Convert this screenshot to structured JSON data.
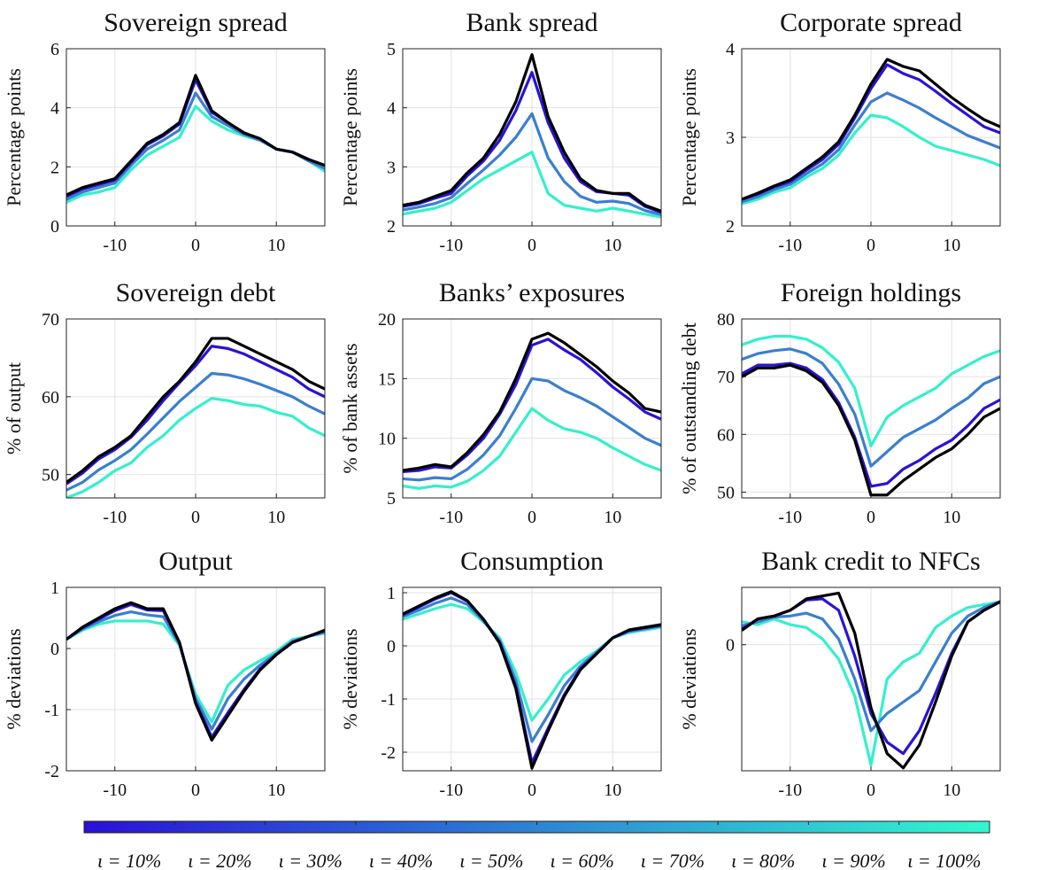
{
  "chart_data": [
    {
      "type": "line",
      "title": "Sovereign spread",
      "ylabel": "Percentage points",
      "grid": true,
      "x": [
        -16,
        -14,
        -12,
        -10,
        -8,
        -6,
        -4,
        -2,
        0,
        2,
        4,
        6,
        8,
        10,
        12,
        14,
        16
      ],
      "xlim": [
        -16,
        16
      ],
      "xticks": [
        -10,
        0,
        10
      ],
      "ylim": [
        0,
        6
      ],
      "yticks": [
        0,
        2,
        4,
        6
      ],
      "series": [
        {
          "color": "#33f0cc",
          "values": [
            0.8,
            1.05,
            1.15,
            1.3,
            1.9,
            2.4,
            2.7,
            3.0,
            4.05,
            3.55,
            3.25,
            3.05,
            2.9,
            2.6,
            2.5,
            2.2,
            1.85
          ]
        },
        {
          "color": "#3a7fd0",
          "values": [
            0.9,
            1.15,
            1.3,
            1.45,
            2.05,
            2.6,
            2.9,
            3.25,
            4.5,
            3.7,
            3.4,
            3.1,
            2.9,
            2.6,
            2.5,
            2.2,
            1.95
          ]
        },
        {
          "color": "#2a12d6",
          "values": [
            1.0,
            1.25,
            1.4,
            1.55,
            2.15,
            2.75,
            3.05,
            3.45,
            4.95,
            3.85,
            3.5,
            3.15,
            2.95,
            2.6,
            2.5,
            2.25,
            2.05
          ]
        },
        {
          "color": "#000000",
          "values": [
            1.05,
            1.3,
            1.45,
            1.6,
            2.2,
            2.8,
            3.1,
            3.5,
            5.1,
            3.9,
            3.5,
            3.15,
            2.95,
            2.6,
            2.5,
            2.25,
            2.05
          ]
        }
      ]
    },
    {
      "type": "line",
      "title": "Bank spread",
      "ylabel": "Percentage points",
      "grid": true,
      "x": [
        -16,
        -14,
        -12,
        -10,
        -8,
        -6,
        -4,
        -2,
        0,
        2,
        4,
        6,
        8,
        10,
        12,
        14,
        16
      ],
      "xlim": [
        -16,
        16
      ],
      "xticks": [
        -10,
        0,
        10
      ],
      "ylim": [
        2,
        5
      ],
      "yticks": [
        2,
        3,
        4,
        5
      ],
      "series": [
        {
          "color": "#33f0cc",
          "values": [
            2.2,
            2.25,
            2.3,
            2.4,
            2.6,
            2.8,
            2.95,
            3.1,
            3.25,
            2.55,
            2.35,
            2.3,
            2.25,
            2.3,
            2.25,
            2.2,
            2.15
          ]
        },
        {
          "color": "#3a7fd0",
          "values": [
            2.27,
            2.32,
            2.38,
            2.48,
            2.72,
            2.95,
            3.2,
            3.5,
            3.9,
            3.15,
            2.75,
            2.5,
            2.4,
            2.42,
            2.38,
            2.26,
            2.19
          ]
        },
        {
          "color": "#2a12d6",
          "values": [
            2.33,
            2.38,
            2.47,
            2.55,
            2.85,
            3.1,
            3.45,
            3.95,
            4.6,
            3.75,
            3.15,
            2.75,
            2.58,
            2.55,
            2.52,
            2.33,
            2.23
          ]
        },
        {
          "color": "#000000",
          "values": [
            2.35,
            2.4,
            2.5,
            2.6,
            2.9,
            3.15,
            3.55,
            4.1,
            4.9,
            3.85,
            3.25,
            2.8,
            2.6,
            2.55,
            2.55,
            2.35,
            2.25
          ]
        }
      ]
    },
    {
      "type": "line",
      "title": "Corporate spread",
      "ylabel": "Percentage points",
      "grid": true,
      "x": [
        -16,
        -14,
        -12,
        -10,
        -8,
        -6,
        -4,
        -2,
        0,
        2,
        4,
        6,
        8,
        10,
        12,
        14,
        16
      ],
      "xlim": [
        -16,
        16
      ],
      "xticks": [
        -10,
        0,
        10
      ],
      "ylim": [
        2,
        4
      ],
      "yticks": [
        2,
        3,
        4
      ],
      "series": [
        {
          "color": "#33f0cc",
          "values": [
            2.25,
            2.3,
            2.38,
            2.43,
            2.55,
            2.65,
            2.8,
            3.05,
            3.25,
            3.22,
            3.12,
            3.0,
            2.9,
            2.85,
            2.8,
            2.75,
            2.68
          ]
        },
        {
          "color": "#3a7fd0",
          "values": [
            2.27,
            2.33,
            2.41,
            2.47,
            2.59,
            2.7,
            2.86,
            3.14,
            3.4,
            3.5,
            3.42,
            3.33,
            3.22,
            3.12,
            3.02,
            2.95,
            2.88
          ]
        },
        {
          "color": "#2a12d6",
          "values": [
            2.3,
            2.36,
            2.44,
            2.5,
            2.63,
            2.75,
            2.92,
            3.22,
            3.55,
            3.82,
            3.72,
            3.65,
            3.52,
            3.38,
            3.25,
            3.12,
            3.05
          ]
        },
        {
          "color": "#000000",
          "values": [
            2.3,
            2.37,
            2.45,
            2.52,
            2.65,
            2.78,
            2.95,
            3.25,
            3.6,
            3.88,
            3.8,
            3.75,
            3.6,
            3.45,
            3.32,
            3.2,
            3.12
          ]
        }
      ]
    },
    {
      "type": "line",
      "title": "Sovereign debt",
      "ylabel": "% of output",
      "grid": true,
      "x": [
        -16,
        -14,
        -12,
        -10,
        -8,
        -6,
        -4,
        -2,
        0,
        2,
        4,
        6,
        8,
        10,
        12,
        14,
        16
      ],
      "xlim": [
        -16,
        16
      ],
      "xticks": [
        -10,
        0,
        10
      ],
      "ylim": [
        47,
        70
      ],
      "yticks": [
        50,
        60,
        70
      ],
      "series": [
        {
          "color": "#33f0cc",
          "values": [
            47,
            47.8,
            49,
            50.5,
            51.5,
            53.5,
            55,
            57,
            58.5,
            59.8,
            59.5,
            59,
            58.8,
            58,
            57.5,
            56,
            55
          ]
        },
        {
          "color": "#3a7fd0",
          "values": [
            48,
            49,
            50.6,
            51.8,
            53.2,
            55.2,
            57.3,
            59.4,
            61.2,
            63,
            62.8,
            62.3,
            61.6,
            60.8,
            60,
            58.8,
            57.8
          ]
        },
        {
          "color": "#2a12d6",
          "values": [
            48.8,
            50.2,
            52,
            53.2,
            54.8,
            57,
            59.5,
            61.8,
            64,
            66.5,
            66.2,
            65.5,
            64.5,
            63.5,
            62.5,
            61,
            60
          ]
        },
        {
          "color": "#000000",
          "values": [
            49,
            50.5,
            52.3,
            53.5,
            55,
            57.5,
            60,
            62,
            64.5,
            67.5,
            67.5,
            66.5,
            65.5,
            64.5,
            63.5,
            62,
            61
          ]
        }
      ]
    },
    {
      "type": "line",
      "title": "Banks’ exposures",
      "ylabel": "% of bank assets",
      "grid": true,
      "x": [
        -16,
        -14,
        -12,
        -10,
        -8,
        -6,
        -4,
        -2,
        0,
        2,
        4,
        6,
        8,
        10,
        12,
        14,
        16
      ],
      "xlim": [
        -16,
        16
      ],
      "xticks": [
        -10,
        0,
        10
      ],
      "ylim": [
        5,
        20
      ],
      "yticks": [
        5,
        10,
        15,
        20
      ],
      "series": [
        {
          "color": "#33f0cc",
          "values": [
            6,
            5.8,
            6,
            5.9,
            6.4,
            7.3,
            8.5,
            10.5,
            12.5,
            11.5,
            10.8,
            10.5,
            10,
            9.2,
            8.5,
            7.8,
            7.3
          ]
        },
        {
          "color": "#3a7fd0",
          "values": [
            6.6,
            6.5,
            6.7,
            6.6,
            7.4,
            8.6,
            10.2,
            12.5,
            15,
            14.8,
            14,
            13.4,
            12.7,
            11.8,
            10.9,
            10,
            9.4
          ]
        },
        {
          "color": "#2a12d6",
          "values": [
            7.2,
            7.3,
            7.6,
            7.5,
            8.6,
            10,
            12,
            14.5,
            17.8,
            18.3,
            17.4,
            16.6,
            15.5,
            14.3,
            13.3,
            12.2,
            11.6
          ]
        },
        {
          "color": "#000000",
          "values": [
            7.3,
            7.5,
            7.8,
            7.6,
            8.8,
            10.3,
            12.2,
            15,
            18.3,
            18.8,
            18,
            17,
            16,
            14.8,
            13.8,
            12.5,
            12.2
          ]
        }
      ]
    },
    {
      "type": "line",
      "title": "Foreign holdings",
      "ylabel": "% of outstanding debt",
      "grid": true,
      "x": [
        -16,
        -14,
        -12,
        -10,
        -8,
        -6,
        -4,
        -2,
        0,
        2,
        4,
        6,
        8,
        10,
        12,
        14,
        16
      ],
      "xlim": [
        -16,
        16
      ],
      "xticks": [
        -10,
        0,
        10
      ],
      "ylim": [
        49,
        80
      ],
      "yticks": [
        50,
        60,
        70,
        80
      ],
      "series": [
        {
          "color": "#33f0cc",
          "values": [
            75.5,
            76.5,
            77,
            77,
            76.5,
            75,
            72.5,
            68,
            58,
            63,
            65,
            66.5,
            68,
            70.5,
            72,
            73.5,
            74.5
          ]
        },
        {
          "color": "#3a7fd0",
          "values": [
            73,
            74,
            74.5,
            74.8,
            74,
            72.3,
            68.7,
            63.5,
            54.5,
            57,
            59.5,
            61,
            62.5,
            64.5,
            66.3,
            68.8,
            70
          ]
        },
        {
          "color": "#2a12d6",
          "values": [
            70.5,
            72,
            72,
            72.3,
            71.5,
            69.5,
            65.5,
            59.5,
            51,
            51.5,
            54,
            55.5,
            57.5,
            59,
            61.5,
            64.5,
            66
          ]
        },
        {
          "color": "#000000",
          "values": [
            70,
            71.5,
            71.5,
            72,
            71,
            69,
            65,
            59,
            49.5,
            49.5,
            52,
            54,
            56,
            57.5,
            60,
            63,
            64.5
          ]
        }
      ]
    },
    {
      "type": "line",
      "title": "Output",
      "ylabel": "% deviations",
      "grid": true,
      "x": [
        -16,
        -14,
        -12,
        -10,
        -8,
        -6,
        -4,
        -2,
        0,
        2,
        4,
        6,
        8,
        10,
        12,
        14,
        16
      ],
      "xlim": [
        -16,
        16
      ],
      "xticks": [
        -10,
        0,
        10
      ],
      "ylim": [
        -2,
        1
      ],
      "yticks": [
        -2,
        -1,
        0,
        1
      ],
      "series": [
        {
          "color": "#33f0cc",
          "values": [
            0.15,
            0.3,
            0.4,
            0.45,
            0.45,
            0.45,
            0.4,
            0.05,
            -0.75,
            -1.2,
            -0.6,
            -0.35,
            -0.2,
            -0.05,
            0.15,
            0.2,
            0.25
          ]
        },
        {
          "color": "#3a7fd0",
          "values": [
            0.15,
            0.32,
            0.44,
            0.54,
            0.6,
            0.55,
            0.52,
            0.07,
            -0.82,
            -1.32,
            -0.82,
            -0.5,
            -0.27,
            -0.08,
            0.12,
            0.2,
            0.27
          ]
        },
        {
          "color": "#2a12d6",
          "values": [
            0.15,
            0.34,
            0.48,
            0.62,
            0.72,
            0.63,
            0.62,
            0.1,
            -0.88,
            -1.45,
            -1.05,
            -0.67,
            -0.33,
            -0.1,
            0.1,
            0.2,
            0.29
          ]
        },
        {
          "color": "#000000",
          "values": [
            0.15,
            0.35,
            0.5,
            0.65,
            0.75,
            0.65,
            0.65,
            0.1,
            -0.9,
            -1.5,
            -1.1,
            -0.7,
            -0.35,
            -0.1,
            0.1,
            0.2,
            0.3
          ]
        }
      ]
    },
    {
      "type": "line",
      "title": "Consumption",
      "ylabel": "% deviations",
      "grid": true,
      "x": [
        -16,
        -14,
        -12,
        -10,
        -8,
        -6,
        -4,
        -2,
        0,
        2,
        4,
        6,
        8,
        10,
        12,
        14,
        16
      ],
      "xlim": [
        -16,
        16
      ],
      "xticks": [
        -10,
        0,
        10
      ],
      "ylim": [
        -2.35,
        1.1
      ],
      "yticks": [
        -2,
        -1,
        0,
        1
      ],
      "series": [
        {
          "color": "#33f0cc",
          "values": [
            0.5,
            0.6,
            0.7,
            0.78,
            0.7,
            0.45,
            0.15,
            -0.5,
            -1.4,
            -1.0,
            -0.55,
            -0.3,
            -0.1,
            0.15,
            0.25,
            0.3,
            0.35
          ]
        },
        {
          "color": "#3a7fd0",
          "values": [
            0.55,
            0.67,
            0.8,
            0.9,
            0.78,
            0.47,
            0.1,
            -0.65,
            -1.8,
            -1.3,
            -0.75,
            -0.38,
            -0.12,
            0.15,
            0.27,
            0.32,
            0.37
          ]
        },
        {
          "color": "#2a12d6",
          "values": [
            0.58,
            0.73,
            0.88,
            1.0,
            0.84,
            0.5,
            0.07,
            -0.77,
            -2.2,
            -1.55,
            -0.92,
            -0.43,
            -0.15,
            0.15,
            0.29,
            0.34,
            0.39
          ]
        },
        {
          "color": "#000000",
          "values": [
            0.6,
            0.75,
            0.9,
            1.02,
            0.85,
            0.5,
            0.05,
            -0.8,
            -2.3,
            -1.6,
            -0.95,
            -0.45,
            -0.15,
            0.15,
            0.3,
            0.35,
            0.4
          ]
        }
      ]
    },
    {
      "type": "line",
      "title": "Bank credit to NFCs",
      "ylabel": "% deviations",
      "grid": true,
      "x": [
        -16,
        -14,
        -12,
        -10,
        -8,
        -6,
        -4,
        -2,
        0,
        2,
        4,
        6,
        8,
        10,
        12,
        14,
        16
      ],
      "xlim": [
        -16,
        16
      ],
      "xticks": [
        -10,
        0,
        10
      ],
      "ylim": [
        -2.2,
        1.0
      ],
      "yticks": [
        0
      ],
      "series": [
        {
          "color": "#33f0cc",
          "values": [
            0.4,
            0.35,
            0.45,
            0.35,
            0.3,
            0.1,
            -0.25,
            -0.9,
            -2.1,
            -0.6,
            -0.3,
            -0.15,
            0.3,
            0.5,
            0.65,
            0.7,
            0.75
          ]
        },
        {
          "color": "#3a7fd0",
          "values": [
            0.33,
            0.4,
            0.48,
            0.5,
            0.55,
            0.45,
            0.1,
            -0.6,
            -1.5,
            -1.2,
            -1.0,
            -0.8,
            -0.3,
            0.2,
            0.5,
            0.65,
            0.75
          ]
        },
        {
          "color": "#2a12d6",
          "values": [
            0.27,
            0.45,
            0.5,
            0.6,
            0.78,
            0.8,
            0.6,
            -0.2,
            -1.2,
            -1.7,
            -1.9,
            -1.5,
            -0.85,
            -0.15,
            0.4,
            0.6,
            0.75
          ]
        },
        {
          "color": "#000000",
          "values": [
            0.25,
            0.45,
            0.5,
            0.6,
            0.8,
            0.85,
            0.9,
            0.2,
            -1.1,
            -1.9,
            -2.15,
            -1.75,
            -1.0,
            -0.2,
            0.4,
            0.6,
            0.75
          ]
        }
      ]
    },
    {
      "type": "colorbar",
      "colors": [
        "#2a10d8",
        "#30f8d0"
      ],
      "labels": [
        "ι = 10%",
        "ι = 20%",
        "ι = 30%",
        "ι = 40%",
        "ι = 50%",
        "ι = 60%",
        "ι = 70%",
        "ι = 80%",
        "ι = 90%",
        "ι = 100%"
      ]
    }
  ]
}
